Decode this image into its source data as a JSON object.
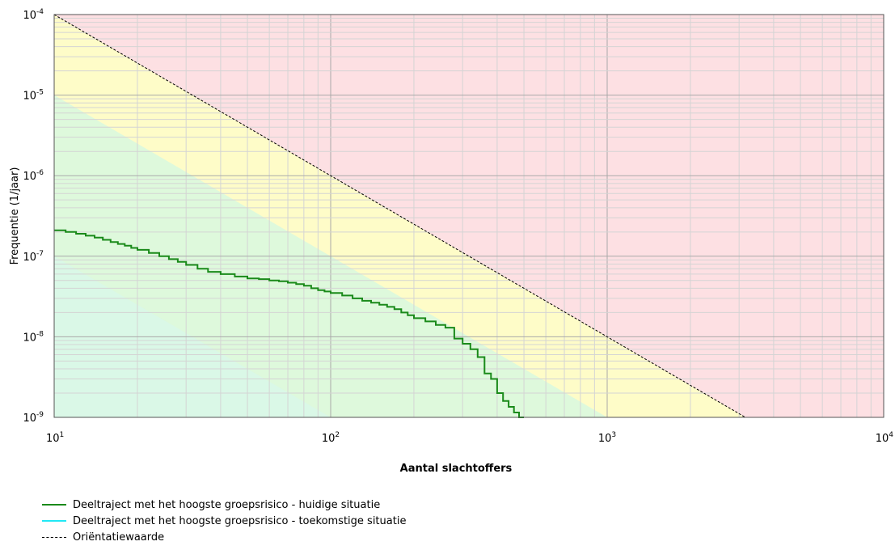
{
  "chart_data": {
    "type": "line",
    "xlabel": "Aantal slachtoffers",
    "ylabel": "Frequentie (1/jaar)",
    "x_scale": "log",
    "y_scale": "log",
    "xlim": [
      10,
      10000
    ],
    "ylim": [
      1e-09,
      0.0001
    ],
    "grid": true,
    "x_ticks": [
      {
        "base": "10",
        "exp": "1"
      },
      {
        "base": "10",
        "exp": "2"
      },
      {
        "base": "10",
        "exp": "3"
      },
      {
        "base": "10",
        "exp": "4"
      }
    ],
    "y_ticks": [
      {
        "base": "10",
        "exp": "-4"
      },
      {
        "base": "10",
        "exp": "-5"
      },
      {
        "base": "10",
        "exp": "-6"
      },
      {
        "base": "10",
        "exp": "-7"
      },
      {
        "base": "10",
        "exp": "-8"
      },
      {
        "base": "10",
        "exp": "-9"
      }
    ],
    "regions": [
      {
        "color": "#fde0e3",
        "description_hidden": true
      },
      {
        "color": "#fefcc8"
      },
      {
        "color": "#def9dc"
      },
      {
        "color": "#d6f7f1"
      }
    ],
    "orientatiewaarde": {
      "x": [
        10,
        3162
      ],
      "y": [
        0.0001,
        1e-09
      ]
    },
    "series": [
      {
        "name": "Deeltraject met het hoogste groepsrisico - huidige situatie",
        "color": "#1a8a1a",
        "step": true,
        "x": [
          10,
          11,
          12,
          13,
          14,
          15,
          16,
          17,
          18,
          19,
          20,
          22,
          24,
          26,
          28,
          30,
          33,
          36,
          40,
          45,
          50,
          55,
          60,
          65,
          70,
          75,
          80,
          85,
          90,
          95,
          100,
          110,
          120,
          130,
          140,
          150,
          160,
          170,
          180,
          190,
          200,
          220,
          240,
          260,
          280,
          300,
          320,
          340,
          360,
          380,
          400,
          420,
          440,
          460,
          480,
          500
        ],
        "y": [
          2.1e-07,
          2e-07,
          1.9e-07,
          1.8e-07,
          1.7e-07,
          1.6e-07,
          1.5e-07,
          1.42e-07,
          1.35e-07,
          1.27e-07,
          1.2e-07,
          1.1e-07,
          1e-07,
          9.2e-08,
          8.5e-08,
          7.8e-08,
          7e-08,
          6.4e-08,
          6e-08,
          5.6e-08,
          5.3e-08,
          5.2e-08,
          5e-08,
          4.9e-08,
          4.7e-08,
          4.5e-08,
          4.3e-08,
          4e-08,
          3.8e-08,
          3.65e-08,
          3.5e-08,
          3.25e-08,
          3e-08,
          2.8e-08,
          2.65e-08,
          2.5e-08,
          2.35e-08,
          2.2e-08,
          2e-08,
          1.85e-08,
          1.7e-08,
          1.55e-08,
          1.4e-08,
          1.3e-08,
          9.5e-09,
          8.2e-09,
          7e-09,
          5.6e-09,
          3.5e-09,
          3e-09,
          2e-09,
          1.6e-09,
          1.35e-09,
          1.15e-09,
          1e-09,
          1e-09
        ]
      },
      {
        "name": "Deeltraject met het hoogste groepsrisico - toekomstige situatie",
        "color": "#22e8f5",
        "x": [],
        "y": []
      }
    ]
  },
  "legend": {
    "items": [
      {
        "label": "Deeltraject met het hoogste groepsrisico - huidige situatie",
        "color": "#1a8a1a",
        "style": "solid"
      },
      {
        "label": "Deeltraject met het hoogste groepsrisico - toekomstige situatie",
        "color": "#22e8f5",
        "style": "solid"
      },
      {
        "label": "Oriëntatiewaarde",
        "color": "#000000",
        "style": "dashed"
      }
    ]
  }
}
